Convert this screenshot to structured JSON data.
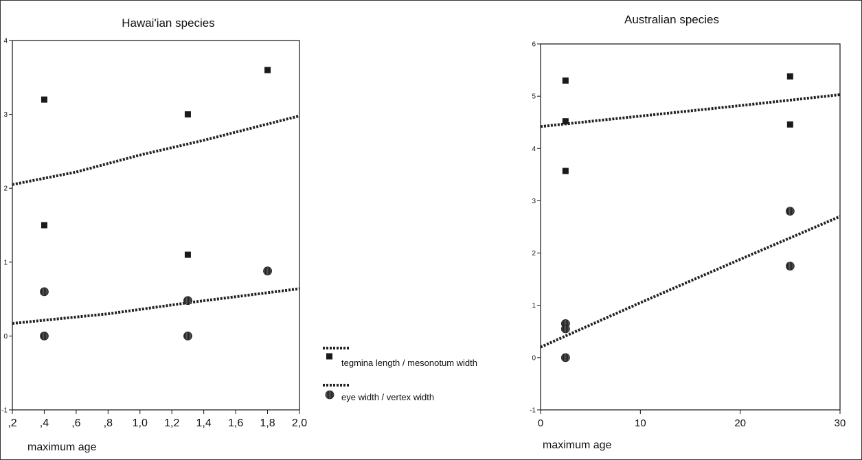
{
  "legend": {
    "entries": [
      {
        "label": "tegmina length / mesonotum width",
        "marker": "square"
      },
      {
        "label": "eye width / vertex width",
        "marker": "circle"
      }
    ]
  },
  "chart_data": [
    {
      "type": "scatter",
      "title": "Hawai'ian species",
      "xlabel": "maximum age",
      "ylabel": "",
      "xlim": [
        0.2,
        2.0
      ],
      "ylim": [
        -1,
        4
      ],
      "x_ticks": [
        0.2,
        0.4,
        0.6,
        0.8,
        1.0,
        1.2,
        1.4,
        1.6,
        1.8,
        2.0
      ],
      "x_tick_labels": [
        ",2",
        ",4",
        ",6",
        ",8",
        "1,0",
        "1,2",
        "1,4",
        "1,6",
        "1,8",
        "2,0"
      ],
      "y_ticks": [
        -1,
        0,
        1,
        2,
        3,
        4
      ],
      "y_tick_labels": [
        "-1",
        "0",
        "1",
        "2",
        "3",
        "4"
      ],
      "series": [
        {
          "marker": "square",
          "points": [
            [
              0.4,
              3.2
            ],
            [
              0.4,
              1.5
            ],
            [
              1.3,
              3.0
            ],
            [
              1.3,
              1.1
            ],
            [
              1.8,
              3.6
            ]
          ],
          "trend": [
            [
              0.2,
              2.05
            ],
            [
              0.6,
              2.22
            ],
            [
              1.0,
              2.45
            ],
            [
              1.4,
              2.65
            ],
            [
              2.0,
              2.98
            ]
          ]
        },
        {
          "marker": "circle",
          "points": [
            [
              0.4,
              0.6
            ],
            [
              0.4,
              0.0
            ],
            [
              1.3,
              0.48
            ],
            [
              1.3,
              0.0
            ],
            [
              1.8,
              0.88
            ]
          ],
          "trend": [
            [
              0.2,
              0.17
            ],
            [
              0.8,
              0.3
            ],
            [
              1.3,
              0.45
            ],
            [
              2.0,
              0.64
            ]
          ]
        }
      ]
    },
    {
      "type": "scatter",
      "title": "Australian species",
      "xlabel": "maximum age",
      "ylabel": "",
      "xlim": [
        0,
        30
      ],
      "ylim": [
        -1,
        6
      ],
      "x_ticks": [
        0,
        10,
        20,
        30
      ],
      "x_tick_labels": [
        "0",
        "10",
        "20",
        "30"
      ],
      "y_ticks": [
        -1,
        0,
        1,
        2,
        3,
        4,
        5,
        6
      ],
      "y_tick_labels": [
        "-1",
        "0",
        "1",
        "2",
        "3",
        "4",
        "5",
        "6"
      ],
      "series": [
        {
          "marker": "square",
          "points": [
            [
              2.5,
              5.3
            ],
            [
              2.5,
              4.52
            ],
            [
              2.5,
              3.57
            ],
            [
              25,
              5.38
            ],
            [
              25,
              4.46
            ]
          ],
          "trend": [
            [
              0,
              4.42
            ],
            [
              10,
              4.62
            ],
            [
              20,
              4.82
            ],
            [
              30,
              5.03
            ]
          ]
        },
        {
          "marker": "circle",
          "points": [
            [
              2.5,
              0.65
            ],
            [
              2.5,
              0.55
            ],
            [
              2.5,
              0.0
            ],
            [
              25,
              2.8
            ],
            [
              25,
              1.75
            ]
          ],
          "trend": [
            [
              0,
              0.2
            ],
            [
              10,
              1.05
            ],
            [
              20,
              1.88
            ],
            [
              30,
              2.7
            ]
          ]
        }
      ]
    }
  ]
}
